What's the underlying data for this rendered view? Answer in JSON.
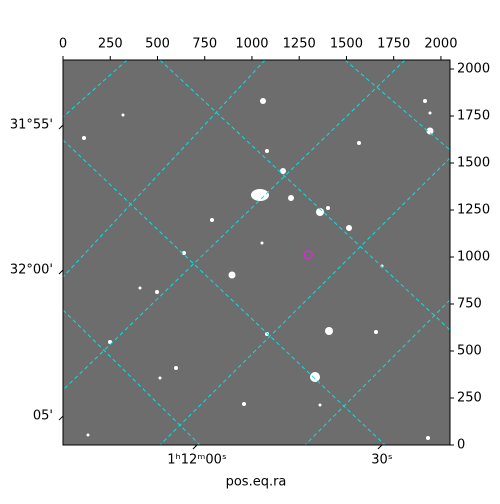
{
  "chart_data": {
    "type": "image",
    "xlabel": "pos.eq.ra",
    "xlim": [
      0,
      2048
    ],
    "ylim": [
      0,
      2048
    ],
    "xticks": [
      0,
      250,
      500,
      750,
      1000,
      1250,
      1500,
      1750,
      2000
    ],
    "yticks": [
      0,
      250,
      500,
      750,
      1000,
      1250,
      1500,
      1750,
      2000
    ],
    "dec_ticks": [
      {
        "value": 1702,
        "label": "31°55'"
      },
      {
        "value": 931,
        "label": "32°00'"
      },
      {
        "value": 154,
        "label": "05'"
      }
    ],
    "ra_ticks": [
      {
        "value": 709,
        "label": "1ʰ12ᵐ00ˢ"
      },
      {
        "value": 1688,
        "label": "30ˢ"
      }
    ],
    "marker": {
      "x": 1297,
      "y": 1011,
      "color": "#cc33cc"
    },
    "grid_color": "#00e5e5"
  }
}
